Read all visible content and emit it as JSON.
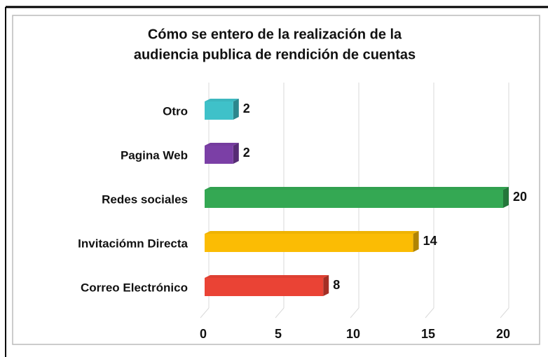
{
  "chart_data": {
    "type": "bar3d-horizontal",
    "title": [
      "Cómo se entero de la realización de la",
      "audiencia publica de rendición de cuentas"
    ],
    "categories": [
      "Correo Electrónico",
      "Invitaciómn Directa",
      "Redes sociales",
      "Pagina Web",
      "Otro"
    ],
    "values": [
      8,
      14,
      20,
      2,
      2
    ],
    "colors": [
      "#ea4335",
      "#fbbc04",
      "#34a853",
      "#7b3fa6",
      "#3fc1c9"
    ],
    "xlim": [
      0,
      20
    ],
    "xticks": [
      0,
      5,
      10,
      15,
      20
    ],
    "grid": true
  }
}
